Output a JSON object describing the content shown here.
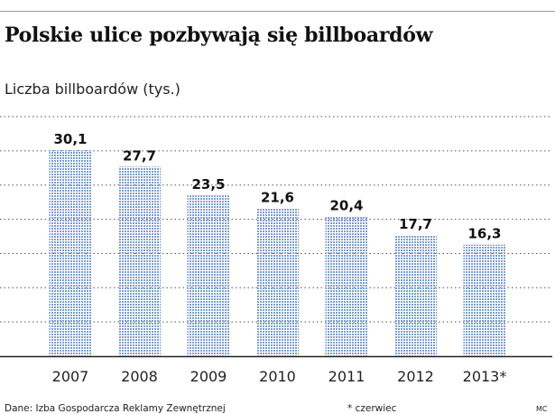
{
  "title": "Polskie ulice pozbywają się billboardów",
  "subtitle": "Liczba billboardów (tys.)",
  "source": "Dane: Izba Gospodarcza Reklamy Zewnętrznej",
  "note": "* czerwiec",
  "credit": "MC",
  "colors": {
    "bar": "#7d9fd4",
    "grid": "#555555",
    "text": "#111111"
  },
  "chart_data": {
    "type": "bar",
    "categories": [
      "2007",
      "2008",
      "2009",
      "2010",
      "2011",
      "2012",
      "2013*"
    ],
    "values": [
      30.1,
      27.7,
      23.5,
      21.6,
      20.4,
      17.7,
      16.3
    ],
    "value_labels": [
      "30,1",
      "27,7",
      "23,5",
      "21,6",
      "20,4",
      "17,7",
      "16,3"
    ],
    "title": "Polskie ulice pozbywają się billboardów",
    "ylabel": "Liczba billboardów (tys.)",
    "xlabel": "",
    "ylim": [
      0,
      35
    ],
    "grid": true,
    "legend": "none"
  }
}
